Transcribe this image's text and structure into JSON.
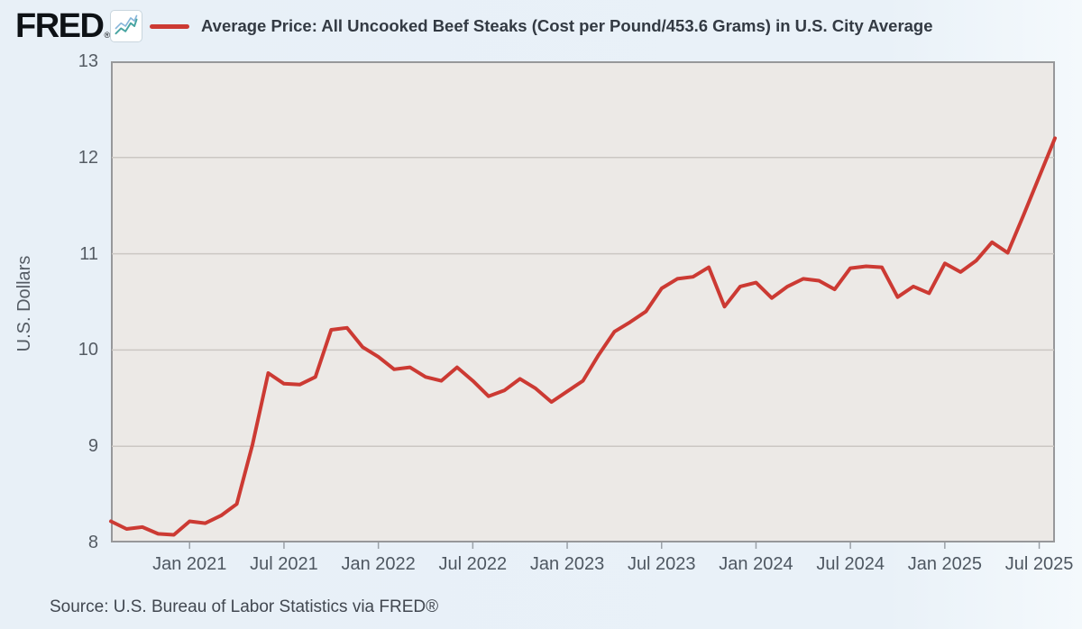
{
  "header": {
    "logo": "FRED",
    "registered": "®",
    "legend_label": "Average Price: All Uncooked Beef Steaks (Cost per Pound/453.6 Grams) in U.S. City Average"
  },
  "source": {
    "text": "Source: U.S. Bureau of Labor Statistics via FRED®"
  },
  "colors": {
    "page_bg": "#e9f1f8",
    "plot_bg": "#ece9e6",
    "grid": "#cbc7c3",
    "plot_border": "#97989a",
    "line": "#cc3a33",
    "tick_mark": "#9aa1a8"
  },
  "chart_data": {
    "type": "line",
    "title": "Average Price: All Uncooked Beef Steaks (Cost per Pound/453.6 Grams) in U.S. City Average",
    "xlabel": "",
    "ylabel": "U.S. Dollars",
    "units": "U.S. Dollars per Pound/453.6 Grams",
    "frequency": "monthly",
    "ylim": [
      8,
      13
    ],
    "yticks": [
      8,
      9,
      10,
      11,
      12,
      13
    ],
    "grid": true,
    "legend_position": "top",
    "series_name": "Average Price: All Uncooked Beef Steaks (Cost per Pound/453.6 Grams) in U.S. City Average",
    "x": [
      "Aug 2020",
      "Sep 2020",
      "Oct 2020",
      "Nov 2020",
      "Dec 2020",
      "Jan 2021",
      "Feb 2021",
      "Mar 2021",
      "Apr 2021",
      "May 2021",
      "Jun 2021",
      "Jul 2021",
      "Aug 2021",
      "Sep 2021",
      "Oct 2021",
      "Nov 2021",
      "Dec 2021",
      "Jan 2022",
      "Feb 2022",
      "Mar 2022",
      "Apr 2022",
      "May 2022",
      "Jun 2022",
      "Jul 2022",
      "Aug 2022",
      "Sep 2022",
      "Oct 2022",
      "Nov 2022",
      "Dec 2022",
      "Jan 2023",
      "Feb 2023",
      "Mar 2023",
      "Apr 2023",
      "May 2023",
      "Jun 2023",
      "Jul 2023",
      "Aug 2023",
      "Sep 2023",
      "Oct 2023",
      "Nov 2023",
      "Dec 2023",
      "Jan 2024",
      "Feb 2024",
      "Mar 2024",
      "Apr 2024",
      "May 2024",
      "Jun 2024",
      "Jul 2024",
      "Aug 2024",
      "Sep 2024",
      "Oct 2024",
      "Nov 2024",
      "Dec 2024",
      "Jan 2025",
      "Feb 2025",
      "Mar 2025",
      "Apr 2025",
      "May 2025",
      "Jun 2025",
      "Jul 2025",
      "Aug 2025"
    ],
    "values": [
      8.22,
      8.14,
      8.16,
      8.09,
      8.08,
      8.22,
      8.2,
      8.28,
      8.4,
      9.02,
      9.76,
      9.65,
      9.64,
      9.72,
      10.21,
      10.23,
      10.03,
      9.93,
      9.8,
      9.82,
      9.72,
      9.68,
      9.82,
      9.68,
      9.52,
      9.58,
      9.7,
      9.6,
      9.46,
      9.57,
      9.68,
      9.95,
      10.19,
      10.29,
      10.4,
      10.64,
      10.74,
      10.76,
      10.86,
      10.45,
      10.66,
      10.7,
      10.54,
      10.66,
      10.74,
      10.72,
      10.63,
      10.85,
      10.87,
      10.86,
      10.55,
      10.66,
      10.59,
      10.9,
      10.81,
      10.93,
      11.12,
      11.01,
      11.4,
      11.8,
      12.2
    ],
    "xticks": [
      {
        "label": "Jan 2021",
        "index": 5
      },
      {
        "label": "Jul 2021",
        "index": 11
      },
      {
        "label": "Jan 2022",
        "index": 17
      },
      {
        "label": "Jul 2022",
        "index": 23
      },
      {
        "label": "Jan 2023",
        "index": 29
      },
      {
        "label": "Jul 2023",
        "index": 35
      },
      {
        "label": "Jan 2024",
        "index": 41
      },
      {
        "label": "Jul 2024",
        "index": 47
      },
      {
        "label": "Jan 2025",
        "index": 53
      },
      {
        "label": "Jul 2025",
        "index": 59
      }
    ]
  }
}
